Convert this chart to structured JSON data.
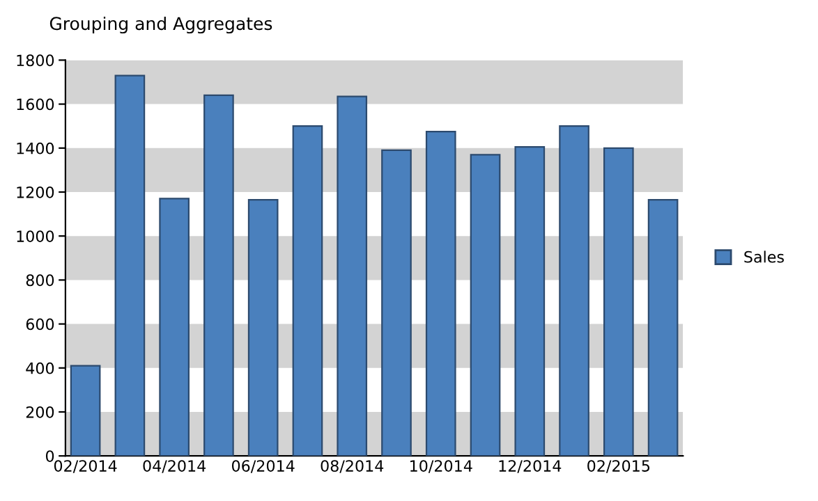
{
  "chart_data": {
    "type": "bar",
    "title": "Grouping and Aggregates",
    "categories": [
      "02/2014",
      null,
      "04/2014",
      null,
      "06/2014",
      null,
      "08/2014",
      null,
      "10/2014",
      null,
      "12/2014",
      null,
      "02/2015",
      null
    ],
    "series": [
      {
        "name": "Sales",
        "color": "#4a80bd",
        "values": [
          410,
          1730,
          1170,
          1640,
          1165,
          1500,
          1635,
          1390,
          1475,
          1370,
          1405,
          1500,
          1400,
          1165
        ]
      }
    ],
    "ylim": [
      0,
      1800
    ],
    "yticks": [
      0,
      200,
      400,
      600,
      800,
      1000,
      1200,
      1400,
      1600,
      1800
    ],
    "bands": [
      {
        "axis": "y",
        "from": 0,
        "to": 200,
        "color": "#d3d3d3"
      },
      {
        "axis": "y",
        "from": 400,
        "to": 600,
        "color": "#d3d3d3"
      },
      {
        "axis": "y",
        "from": 800,
        "to": 1000,
        "color": "#d3d3d3"
      },
      {
        "axis": "y",
        "from": 1200,
        "to": 1400,
        "color": "#d3d3d3"
      },
      {
        "axis": "y",
        "from": 1600,
        "to": 1800,
        "color": "#d3d3d3"
      }
    ],
    "grid": false,
    "legend": "right"
  }
}
